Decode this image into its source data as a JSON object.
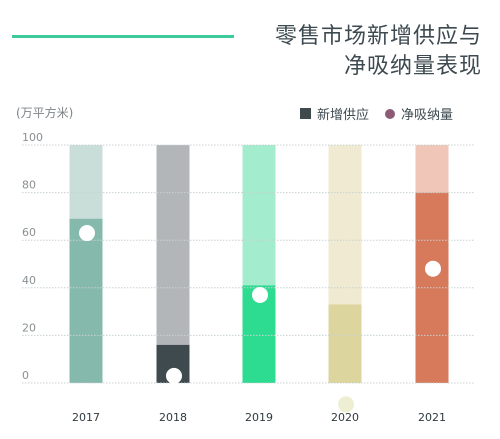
{
  "title_line1": "零售市场新增供应与",
  "title_line2": "净吸纳量表现",
  "unit": "(万平方米)",
  "legend": {
    "supply": "新增供应",
    "absorption": "净吸纳量"
  },
  "chart_data": {
    "type": "bar",
    "title": "零售市场新增供应与净吸纳量表现",
    "ylabel": "(万平方米)",
    "ylim": [
      0,
      100
    ],
    "yticks": [
      0,
      20,
      40,
      60,
      80,
      100
    ],
    "categories": [
      "2017",
      "2018",
      "2019",
      "2020",
      "2021"
    ],
    "series": [
      {
        "name": "新增供应",
        "values": [
          69,
          16,
          41,
          33,
          80
        ]
      },
      {
        "name": "净吸纳量",
        "values": [
          63,
          3,
          37,
          -9,
          48
        ]
      }
    ],
    "colors": {
      "fill": [
        "#85b9ac",
        "#3f4a4f",
        "#2edc91",
        "#ddd59e",
        "#d77a5c"
      ],
      "track": [
        "#c9ded9",
        "#b3b6b8",
        "#a4ecce",
        "#efead1",
        "#efc6b8"
      ],
      "grid": "#c8d2d0",
      "dot": "#ffffff"
    },
    "grid": true,
    "legend_position": "top-right"
  }
}
